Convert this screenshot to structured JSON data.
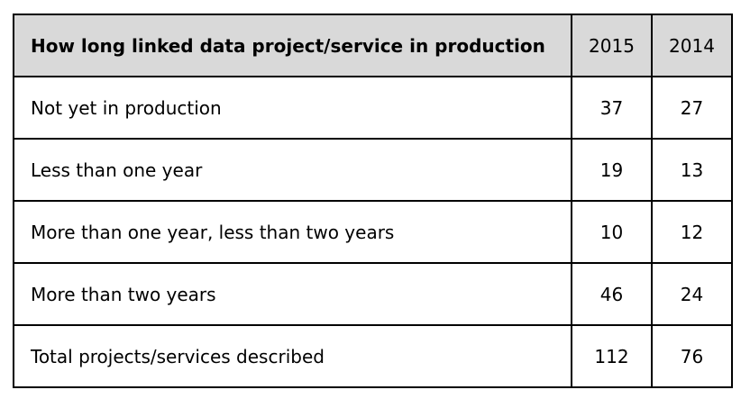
{
  "table": {
    "header": [
      "How long linked data project/service in production",
      "2015",
      "2014"
    ],
    "rows": [
      [
        "Not yet in production",
        37,
        27
      ],
      [
        "Less than one year",
        19,
        13
      ],
      [
        "More than one year, less than two years",
        10,
        12
      ],
      [
        "More than two years",
        46,
        24
      ],
      [
        "Total projects/services described",
        112,
        76
      ]
    ]
  }
}
